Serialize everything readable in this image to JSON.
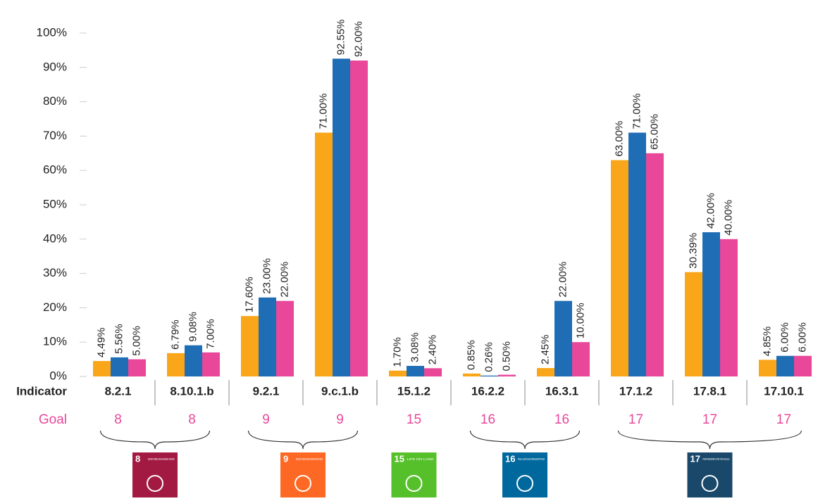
{
  "chart_data": {
    "type": "bar",
    "categories": [
      "8.2.1",
      "8.10.1.b",
      "9.2.1",
      "9.c.1.b",
      "15.1.2",
      "16.2.2",
      "16.3.1",
      "17.1.2",
      "17.8.1",
      "17.10.1"
    ],
    "series": [
      {
        "color": "#f9a61a",
        "values": [
          4.49,
          6.79,
          17.6,
          71,
          1.7,
          0.85,
          2.45,
          63,
          30.39,
          4.85
        ],
        "value_labels": [
          "4.49%",
          "6.79%",
          "17.60%",
          "71.00%",
          "1.70%",
          "0.85%",
          "2.45%",
          "63.00%",
          "30.39%",
          "4.85%"
        ]
      },
      {
        "color": "#1f6db5",
        "values": [
          5.56,
          9.08,
          23,
          92.55,
          3.08,
          0.26,
          22,
          71,
          42,
          6
        ],
        "value_labels": [
          "5.56%",
          "9.08%",
          "23.00%",
          "92.55%",
          "3.08%",
          "0.26%",
          "22.00%",
          "71.00%",
          "42.00%",
          "6.00%"
        ]
      },
      {
        "color": "#e8479a",
        "values": [
          5,
          7,
          22,
          92,
          2.4,
          0.5,
          10,
          65,
          40,
          6
        ],
        "value_labels": [
          "5.00%",
          "7.00%",
          "22.00%",
          "92.00%",
          "2.40%",
          "0.50%",
          "10.00%",
          "65.00%",
          "40.00%",
          "6.00%"
        ]
      }
    ],
    "ylim": [
      0,
      100
    ],
    "yticks": [
      {
        "value": 0,
        "label": "0%"
      },
      {
        "value": 10,
        "label": "10%"
      },
      {
        "value": 20,
        "label": "20%"
      },
      {
        "value": 30,
        "label": "30%"
      },
      {
        "value": 40,
        "label": "40%"
      },
      {
        "value": 50,
        "label": "50%"
      },
      {
        "value": 60,
        "label": "60%"
      },
      {
        "value": 70,
        "label": "70%"
      },
      {
        "value": 80,
        "label": "80%"
      },
      {
        "value": 90,
        "label": "90%"
      },
      {
        "value": 100,
        "label": "100%"
      }
    ],
    "grid": false,
    "indicator_label": "Indicator",
    "goal_label": "Goal",
    "goal_color": "#e8479a",
    "goals": [
      8,
      8,
      9,
      9,
      15,
      16,
      16,
      17,
      17,
      17
    ],
    "goal_icons": [
      {
        "goal": 8,
        "title": "DECENT WORK AND ECONOMIC GROWTH",
        "color": "#a21942"
      },
      {
        "goal": 9,
        "title": "INDUSTRY, INNOVATION AND INFRASTRUCTURE",
        "color": "#fd6925"
      },
      {
        "goal": 15,
        "title": "LIFE ON LAND",
        "color": "#56c02b"
      },
      {
        "goal": 16,
        "title": "PEACE, JUSTICE AND STRONG INSTITUTIONS",
        "color": "#00689d"
      },
      {
        "goal": 17,
        "title": "PARTNERSHIPS FOR THE GOALS",
        "color": "#19486a"
      }
    ]
  }
}
